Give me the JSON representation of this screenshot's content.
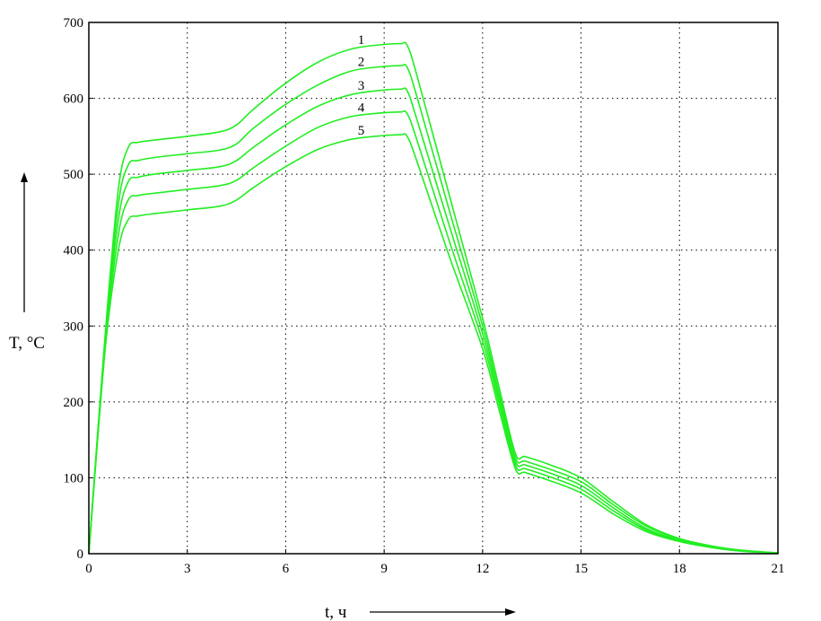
{
  "chart_data": {
    "type": "line",
    "title": "",
    "xlabel": "t, ч",
    "ylabel": "T, °C",
    "xlim": [
      0,
      21
    ],
    "ylim": [
      0,
      700
    ],
    "xticks": [
      0,
      3,
      6,
      9,
      12,
      15,
      18,
      21
    ],
    "yticks": [
      0,
      100,
      200,
      300,
      400,
      500,
      600,
      700
    ],
    "grid": true,
    "line_color": "#22ee22",
    "x": [
      0,
      0.5,
      0.9,
      1.2,
      1.5,
      2,
      3,
      4,
      4.5,
      5,
      6,
      7,
      8,
      9,
      9.5,
      9.7,
      10,
      11,
      12,
      12.5,
      13,
      13.3,
      14,
      15,
      16,
      17,
      18,
      19,
      20,
      21
    ],
    "series": [
      {
        "name": "1",
        "values": [
          0,
          290,
          480,
          535,
          542,
          545,
          550,
          556,
          565,
          585,
          620,
          648,
          665,
          671,
          672,
          670,
          630,
          470,
          310,
          220,
          132,
          128,
          118,
          100,
          68,
          38,
          20,
          10,
          4,
          1
        ]
      },
      {
        "name": "2",
        "values": [
          0,
          285,
          460,
          512,
          518,
          522,
          527,
          532,
          540,
          560,
          592,
          618,
          636,
          642,
          643,
          641,
          602,
          450,
          300,
          212,
          127,
          122,
          112,
          95,
          64,
          36,
          19,
          9,
          4,
          1
        ]
      },
      {
        "name": "3",
        "values": [
          0,
          280,
          440,
          490,
          496,
          500,
          505,
          510,
          518,
          535,
          565,
          590,
          605,
          611,
          612,
          610,
          572,
          430,
          290,
          205,
          122,
          117,
          107,
          90,
          60,
          33,
          18,
          9,
          4,
          1
        ]
      },
      {
        "name": "4",
        "values": [
          0,
          275,
          420,
          466,
          472,
          475,
          480,
          485,
          492,
          508,
          537,
          562,
          576,
          581,
          582,
          580,
          545,
          410,
          280,
          198,
          117,
          112,
          102,
          85,
          56,
          31,
          17,
          8,
          3,
          1
        ]
      },
      {
        "name": "5",
        "values": [
          0,
          270,
          400,
          440,
          445,
          448,
          453,
          458,
          466,
          482,
          510,
          533,
          546,
          551,
          552,
          550,
          517,
          390,
          270,
          190,
          112,
          107,
          97,
          80,
          52,
          29,
          16,
          8,
          3,
          1
        ]
      }
    ],
    "curve_labels": [
      "1",
      "2",
      "3",
      "4",
      "5"
    ]
  }
}
